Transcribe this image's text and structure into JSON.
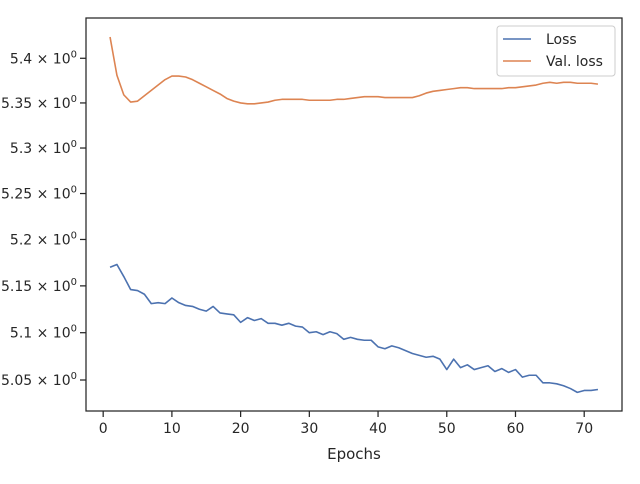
{
  "chart_data": {
    "type": "line",
    "xlabel": "Epochs",
    "ylabel": "",
    "title": "",
    "xlim": [
      -2.5,
      75.5
    ],
    "ylim": [
      5.0175,
      5.4455
    ],
    "x_ticks": [
      0,
      10,
      20,
      30,
      40,
      50,
      60,
      70
    ],
    "x_tick_labels": [
      "0",
      "10",
      "20",
      "30",
      "40",
      "50",
      "60",
      "70"
    ],
    "y_ticks": [
      5.05,
      5.1,
      5.15,
      5.2,
      5.25,
      5.3,
      5.35,
      5.4
    ],
    "y_tick_labels": [
      {
        "base": "5.05",
        "exp": "0"
      },
      {
        "base": "5.1",
        "exp": "0"
      },
      {
        "base": "5.15",
        "exp": "0"
      },
      {
        "base": "5.2",
        "exp": "0"
      },
      {
        "base": "5.25",
        "exp": "0"
      },
      {
        "base": "5.3",
        "exp": "0"
      },
      {
        "base": "5.35",
        "exp": "0"
      },
      {
        "base": "5.4",
        "exp": "0"
      }
    ],
    "y_scale": "log",
    "grid": false,
    "legend_position": "top-right",
    "series": [
      {
        "name": "Loss",
        "color": "#4c72b0",
        "x": [
          1,
          2,
          3,
          4,
          5,
          6,
          7,
          8,
          9,
          10,
          11,
          12,
          13,
          14,
          15,
          16,
          17,
          18,
          19,
          20,
          21,
          22,
          23,
          24,
          25,
          26,
          27,
          28,
          29,
          30,
          31,
          32,
          33,
          34,
          35,
          36,
          37,
          38,
          39,
          40,
          41,
          42,
          43,
          44,
          45,
          46,
          47,
          48,
          49,
          50,
          51,
          52,
          53,
          54,
          55,
          56,
          57,
          58,
          59,
          60,
          61,
          62,
          63,
          64,
          65,
          66,
          67,
          68,
          69,
          70,
          71,
          72
        ],
        "values": [
          5.17,
          5.173,
          5.16,
          5.146,
          5.145,
          5.141,
          5.131,
          5.132,
          5.131,
          5.137,
          5.132,
          5.129,
          5.128,
          5.125,
          5.123,
          5.128,
          5.121,
          5.12,
          5.119,
          5.111,
          5.116,
          5.113,
          5.115,
          5.11,
          5.11,
          5.108,
          5.11,
          5.107,
          5.106,
          5.1,
          5.101,
          5.098,
          5.101,
          5.099,
          5.093,
          5.095,
          5.093,
          5.092,
          5.092,
          5.085,
          5.083,
          5.086,
          5.084,
          5.081,
          5.078,
          5.076,
          5.074,
          5.075,
          5.072,
          5.061,
          5.072,
          5.063,
          5.066,
          5.061,
          5.063,
          5.065,
          5.059,
          5.062,
          5.058,
          5.061,
          5.053,
          5.055,
          5.055,
          5.047,
          5.047,
          5.046,
          5.044,
          5.041,
          5.037,
          5.039,
          5.039,
          5.04
        ]
      },
      {
        "name": "Val. loss",
        "color": "#dd8452",
        "x": [
          1,
          2,
          3,
          4,
          5,
          6,
          7,
          8,
          9,
          10,
          11,
          12,
          13,
          14,
          15,
          16,
          17,
          18,
          19,
          20,
          21,
          22,
          23,
          24,
          25,
          26,
          27,
          28,
          29,
          30,
          31,
          32,
          33,
          34,
          35,
          36,
          37,
          38,
          39,
          40,
          41,
          42,
          43,
          44,
          45,
          46,
          47,
          48,
          49,
          50,
          51,
          52,
          53,
          54,
          55,
          56,
          57,
          58,
          59,
          60,
          61,
          62,
          63,
          64,
          65,
          66,
          67,
          68,
          69,
          70,
          71,
          72
        ],
        "values": [
          5.424,
          5.381,
          5.359,
          5.351,
          5.352,
          5.358,
          5.364,
          5.37,
          5.376,
          5.38,
          5.38,
          5.379,
          5.376,
          5.372,
          5.368,
          5.364,
          5.36,
          5.355,
          5.352,
          5.35,
          5.349,
          5.349,
          5.35,
          5.351,
          5.353,
          5.354,
          5.354,
          5.354,
          5.354,
          5.353,
          5.353,
          5.353,
          5.353,
          5.354,
          5.354,
          5.355,
          5.356,
          5.357,
          5.357,
          5.357,
          5.356,
          5.356,
          5.356,
          5.356,
          5.356,
          5.358,
          5.361,
          5.363,
          5.364,
          5.365,
          5.366,
          5.367,
          5.367,
          5.366,
          5.366,
          5.366,
          5.366,
          5.366,
          5.367,
          5.367,
          5.368,
          5.369,
          5.37,
          5.372,
          5.373,
          5.372,
          5.373,
          5.373,
          5.372,
          5.372,
          5.372,
          5.371
        ]
      }
    ]
  }
}
